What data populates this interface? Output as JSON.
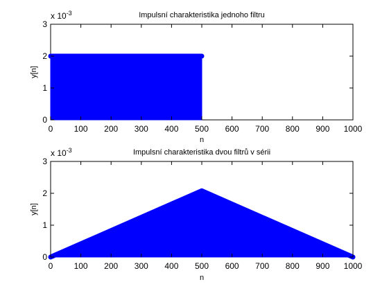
{
  "figure": {
    "background": "#ffffff",
    "series_color": "#0000ff"
  },
  "chart_data": [
    {
      "type": "stem",
      "title": "Impulsní charakteristika jednoho filtru",
      "xlabel": "n",
      "ylabel": "y[n]",
      "xlim": [
        0,
        1000
      ],
      "ylim": [
        0,
        3
      ],
      "y_exponent_label": "x 10",
      "y_exponent": "-3",
      "xticks": [
        "0",
        "100",
        "200",
        "300",
        "400",
        "500",
        "600",
        "700",
        "800",
        "900",
        "1000"
      ],
      "yticks": [
        "0",
        "1",
        "2",
        "3"
      ],
      "grid": false,
      "series": [
        {
          "shape": "rectangular",
          "n": [
            0,
            500
          ],
          "y": [
            2,
            2
          ]
        }
      ]
    },
    {
      "type": "stem",
      "title": "Impulsní charakteristika dvou filtrů v sérii",
      "xlabel": "n",
      "ylabel": "y[n]",
      "xlim": [
        0,
        1000
      ],
      "ylim": [
        0,
        3
      ],
      "y_exponent_label": "x 10",
      "y_exponent": "-3",
      "xticks": [
        "0",
        "100",
        "200",
        "300",
        "400",
        "500",
        "600",
        "700",
        "800",
        "900",
        "1000"
      ],
      "yticks": [
        "0",
        "1",
        "2",
        "3"
      ],
      "grid": false,
      "series": [
        {
          "shape": "triangular",
          "n": [
            0,
            500,
            1000
          ],
          "y": [
            0,
            2.08,
            0
          ]
        }
      ]
    }
  ]
}
